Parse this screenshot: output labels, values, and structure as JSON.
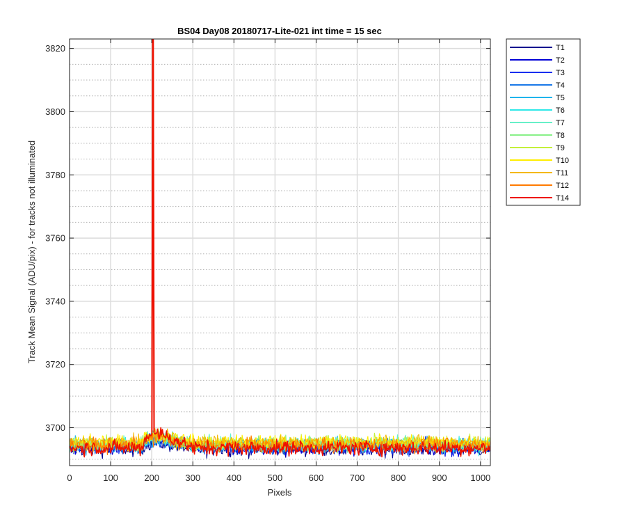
{
  "chart_data": {
    "type": "line",
    "title": "BS04 Day08 20180717-Lite-021 int time = 15 sec",
    "xlabel": "Pixels",
    "ylabel": "Track Mean Signal (ADU/pix) - for tracks not illuminated",
    "xlim": [
      0,
      1024
    ],
    "ylim": [
      3688,
      3823
    ],
    "x_ticks": [
      0,
      100,
      200,
      300,
      400,
      500,
      600,
      700,
      800,
      900,
      1000
    ],
    "y_ticks": [
      3700,
      3720,
      3740,
      3760,
      3780,
      3800,
      3820
    ],
    "grid": "major solid, minor dotted",
    "legend_placement": "outside-right",
    "series": [
      {
        "name": "T1",
        "color": "#00008f",
        "baseline": 3693.2
      },
      {
        "name": "T2",
        "color": "#0000d6",
        "baseline": 3693.6
      },
      {
        "name": "T3",
        "color": "#0a2ff0",
        "baseline": 3693.9
      },
      {
        "name": "T4",
        "color": "#1a78e8",
        "baseline": 3694.2
      },
      {
        "name": "T5",
        "color": "#1eb4ec",
        "baseline": 3694.3
      },
      {
        "name": "T6",
        "color": "#2ee8e8",
        "baseline": 3694.5
      },
      {
        "name": "T7",
        "color": "#66f0c8",
        "baseline": 3694.7
      },
      {
        "name": "T8",
        "color": "#88f088",
        "baseline": 3694.9
      },
      {
        "name": "T9",
        "color": "#c4f03a",
        "baseline": 3695.2
      },
      {
        "name": "T10",
        "color": "#ffee00",
        "baseline": 3695.5
      },
      {
        "name": "T11",
        "color": "#f4b800",
        "baseline": 3695.3
      },
      {
        "name": "T12",
        "color": "#ff7a00",
        "baseline": 3694.4
      },
      {
        "name": "T14",
        "color": "#ee1100",
        "baseline": 3693.6
      }
    ],
    "spike": {
      "series": "T14",
      "x": 203,
      "y": 3823,
      "base_bump": 3698.5
    }
  }
}
